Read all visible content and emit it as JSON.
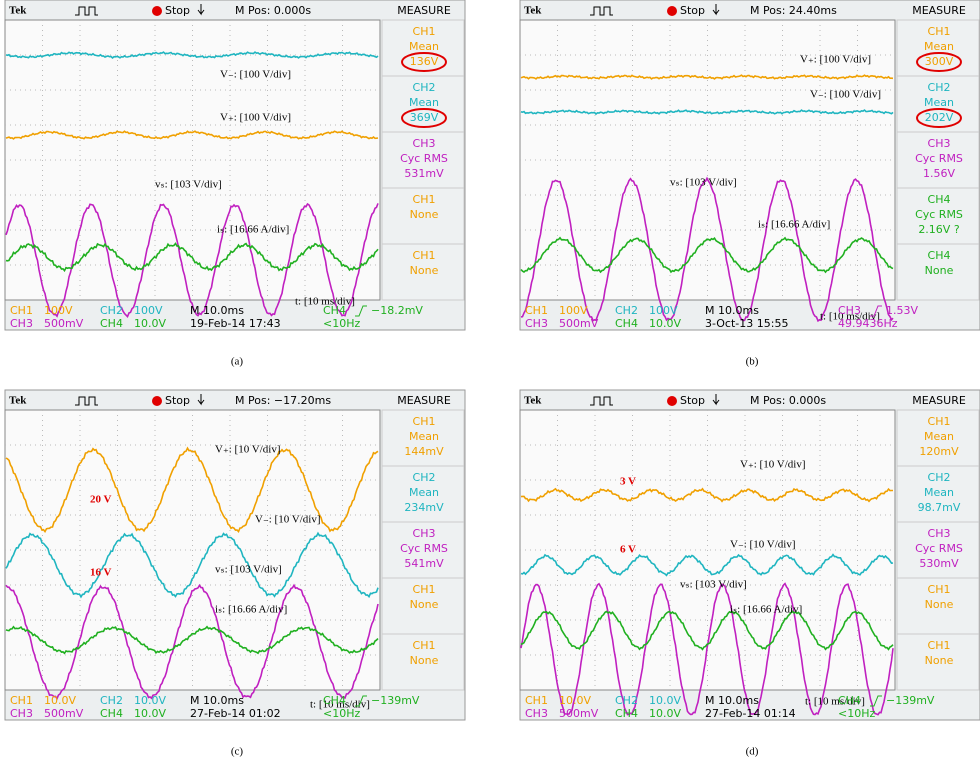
{
  "channel_colors": {
    "CH1": "#f0a000",
    "CH2": "#1fb5c0",
    "CH3": "#c020c0",
    "CH4": "#20b020"
  },
  "panels": [
    {
      "caption": "(a)",
      "header": {
        "brand": "Tek",
        "state": "Stop",
        "mpos": "M Pos: 0.000s",
        "measure_title": "MEASURE"
      },
      "measures": [
        {
          "lines": [
            "CH1",
            "Mean",
            "136V"
          ],
          "circled": true
        },
        {
          "lines": [
            "CH2",
            "Mean",
            "369V"
          ],
          "circled": true
        },
        {
          "lines": [
            "CH3",
            "Cyc RMS",
            "531mV"
          ]
        },
        {
          "lines": [
            "CH1",
            "None"
          ]
        },
        {
          "lines": [
            "CH1",
            "None"
          ]
        }
      ],
      "annotations": [
        {
          "text": "V₋: [100 V/div]"
        },
        {
          "text": "V₊: [100 V/div]"
        },
        {
          "text": "vₛ: [103 V/div]"
        },
        {
          "text": "iₛ: [16.66 A/div]"
        },
        {
          "text": "t: [10 ms/div]"
        }
      ],
      "footer": {
        "channels": [
          {
            "channel": "CH1",
            "setting": "100V"
          },
          {
            "channel": "CH2",
            "setting": "100V"
          },
          {
            "channel": "CH3",
            "setting": "500mV"
          },
          {
            "channel": "CH4",
            "setting": "10.0V"
          }
        ],
        "timebase": "M 10.0ms",
        "date": "19-Feb-14 17:43",
        "trigger": {
          "channel": "CH4",
          "level": "−18.2mV",
          "freq": "<10Hz"
        }
      }
    },
    {
      "caption": "(b)",
      "header": {
        "brand": "Tek",
        "state": "Stop",
        "mpos": "M Pos: 24.40ms",
        "measure_title": "MEASURE"
      },
      "measures": [
        {
          "lines": [
            "CH1",
            "Mean",
            "300V"
          ],
          "circled": true
        },
        {
          "lines": [
            "CH2",
            "Mean",
            "202V"
          ],
          "circled": true
        },
        {
          "lines": [
            "CH3",
            "Cyc RMS",
            "1.56V"
          ]
        },
        {
          "lines": [
            "CH4",
            "Cyc RMS",
            "2.16V ?"
          ]
        },
        {
          "lines": [
            "CH4",
            "None"
          ]
        }
      ],
      "annotations": [
        {
          "text": "V₊: [100 V/div]"
        },
        {
          "text": "V₋: [100 V/div]"
        },
        {
          "text": "vₛ: [103 V/div]"
        },
        {
          "text": "iₛ: [16.66 A/div]"
        },
        {
          "text": "t: [10 ms/div]"
        }
      ],
      "footer": {
        "channels": [
          {
            "channel": "CH1",
            "setting": "100V"
          },
          {
            "channel": "CH2",
            "setting": "100V"
          },
          {
            "channel": "CH3",
            "setting": "500mV"
          },
          {
            "channel": "CH4",
            "setting": "10.0V"
          }
        ],
        "timebase": "M 10.0ms",
        "date": "3-Oct-13 15:55",
        "trigger": {
          "channel": "CH3",
          "level": "1.53V",
          "freq": "49.9436Hz"
        }
      }
    },
    {
      "caption": "(c)",
      "header": {
        "brand": "Tek",
        "state": "Stop",
        "mpos": "M Pos: −17.20ms",
        "measure_title": "MEASURE"
      },
      "measures": [
        {
          "lines": [
            "CH1",
            "Mean",
            "144mV"
          ]
        },
        {
          "lines": [
            "CH2",
            "Mean",
            "234mV"
          ]
        },
        {
          "lines": [
            "CH3",
            "Cyc RMS",
            "541mV"
          ]
        },
        {
          "lines": [
            "CH1",
            "None"
          ]
        },
        {
          "lines": [
            "CH1",
            "None"
          ]
        }
      ],
      "annotations": [
        {
          "text": "V₊: [10 V/div]"
        },
        {
          "text": "V₋: [10 V/div]"
        },
        {
          "text": "vₛ: [103 V/div]"
        },
        {
          "text": "iₛ: [16.66 A/div]"
        },
        {
          "text": "t: [10 ms/div]"
        },
        {
          "text": "20 V",
          "color": "#e00000"
        },
        {
          "text": "16 V",
          "color": "#e00000"
        }
      ],
      "footer": {
        "channels": [
          {
            "channel": "CH1",
            "setting": "10.0V"
          },
          {
            "channel": "CH2",
            "setting": "10.0V"
          },
          {
            "channel": "CH3",
            "setting": "500mV"
          },
          {
            "channel": "CH4",
            "setting": "10.0V"
          }
        ],
        "timebase": "M 10.0ms",
        "date": "27-Feb-14 01:02",
        "trigger": {
          "channel": "CH4",
          "level": "−139mV",
          "freq": "<10Hz"
        }
      }
    },
    {
      "caption": "(d)",
      "header": {
        "brand": "Tek",
        "state": "Stop",
        "mpos": "M Pos: 0.000s",
        "measure_title": "MEASURE"
      },
      "measures": [
        {
          "lines": [
            "CH1",
            "Mean",
            "120mV"
          ]
        },
        {
          "lines": [
            "CH2",
            "Mean",
            "98.7mV"
          ]
        },
        {
          "lines": [
            "CH3",
            "Cyc RMS",
            "530mV"
          ]
        },
        {
          "lines": [
            "CH1",
            "None"
          ]
        },
        {
          "lines": [
            "CH1",
            "None"
          ]
        }
      ],
      "annotations": [
        {
          "text": "V₊: [10 V/div]"
        },
        {
          "text": "V₋: [10 V/div]"
        },
        {
          "text": "vₛ: [103 V/div]"
        },
        {
          "text": "iₛ: [16.66 A/div]"
        },
        {
          "text": "t: [10 ms/div]"
        },
        {
          "text": "3 V",
          "color": "#e00000"
        },
        {
          "text": "6 V",
          "color": "#e00000"
        }
      ],
      "footer": {
        "channels": [
          {
            "channel": "CH1",
            "setting": "10.0V"
          },
          {
            "channel": "CH2",
            "setting": "10.0V"
          },
          {
            "channel": "CH3",
            "setting": "500mV"
          },
          {
            "channel": "CH4",
            "setting": "10.0V"
          }
        ],
        "timebase": "M 10.0ms",
        "date": "27-Feb-14 01:14",
        "trigger": {
          "channel": "CH4",
          "level": "−139mV",
          "freq": "<10Hz"
        }
      }
    }
  ]
}
